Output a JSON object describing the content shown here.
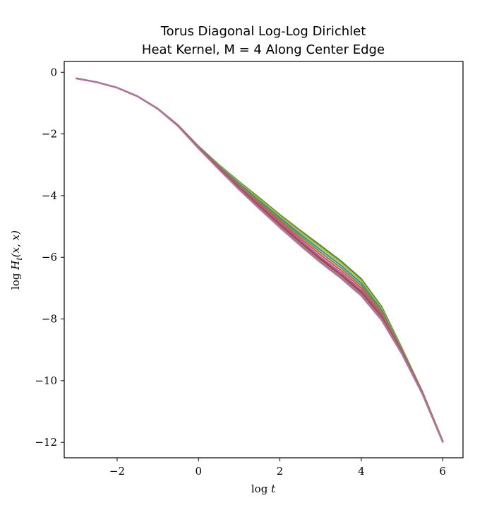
{
  "chart_data": {
    "type": "line",
    "title_lines": [
      "Torus Diagonal Log-Log Dirichlet",
      "Heat Kernel, M = 4 Along Center Edge"
    ],
    "xlabel_main": "log",
    "xlabel_var": "t",
    "ylabel_main": "log",
    "ylabel_var": "H",
    "ylabel_sub": "t",
    "ylabel_args": "(x, x)",
    "xlim": [
      -3.3,
      6.5
    ],
    "ylim": [
      -12.5,
      0.35
    ],
    "xticks": [
      -2,
      0,
      2,
      4,
      6
    ],
    "yticks": [
      0,
      -2,
      -4,
      -6,
      -8,
      -10,
      -12
    ],
    "xtick_labels": [
      "−2",
      "0",
      "2",
      "4",
      "6"
    ],
    "ytick_labels": [
      "0",
      "−2",
      "−4",
      "−6",
      "−8",
      "−10",
      "−12"
    ],
    "grid": false,
    "legend": "none",
    "x": [
      -3.0,
      -2.5,
      -2.0,
      -1.5,
      -1.0,
      -0.5,
      0.0,
      0.5,
      1.0,
      1.5,
      2.0,
      2.5,
      3.0,
      3.5,
      4.0,
      4.5,
      5.0,
      5.5,
      6.0
    ],
    "series": [
      {
        "color": "#4a8f3c",
        "values": [
          -0.2,
          -0.32,
          -0.5,
          -0.78,
          -1.18,
          -1.72,
          -2.4,
          -3.0,
          -3.55,
          -4.08,
          -4.62,
          -5.13,
          -5.62,
          -6.12,
          -6.7,
          -7.6,
          -8.95,
          -10.35,
          -11.95
        ]
      },
      {
        "color": "#c8b020",
        "values": [
          -0.2,
          -0.32,
          -0.5,
          -0.78,
          -1.18,
          -1.72,
          -2.41,
          -3.02,
          -3.58,
          -4.12,
          -4.66,
          -5.18,
          -5.68,
          -6.18,
          -6.76,
          -7.66,
          -8.98,
          -10.36,
          -11.95
        ]
      },
      {
        "color": "#1f9aa8",
        "values": [
          -0.2,
          -0.32,
          -0.5,
          -0.78,
          -1.18,
          -1.72,
          -2.42,
          -3.04,
          -3.62,
          -4.17,
          -4.72,
          -5.25,
          -5.76,
          -6.26,
          -6.84,
          -7.72,
          -9.0,
          -10.37,
          -11.96
        ]
      },
      {
        "color": "#8a8a3a",
        "values": [
          -0.2,
          -0.32,
          -0.5,
          -0.78,
          -1.18,
          -1.73,
          -2.43,
          -3.06,
          -3.66,
          -4.22,
          -4.78,
          -5.32,
          -5.84,
          -6.34,
          -6.92,
          -7.78,
          -9.02,
          -10.38,
          -11.96
        ]
      },
      {
        "color": "#d9534f",
        "values": [
          -0.2,
          -0.32,
          -0.5,
          -0.78,
          -1.18,
          -1.73,
          -2.44,
          -3.08,
          -3.7,
          -4.27,
          -4.84,
          -5.39,
          -5.92,
          -6.42,
          -7.0,
          -7.84,
          -9.05,
          -10.39,
          -11.97
        ]
      },
      {
        "color": "#9b59b6",
        "values": [
          -0.2,
          -0.32,
          -0.5,
          -0.78,
          -1.19,
          -1.74,
          -2.45,
          -3.1,
          -3.73,
          -4.32,
          -4.9,
          -5.46,
          -6.0,
          -6.5,
          -7.08,
          -7.9,
          -9.08,
          -10.4,
          -11.97
        ]
      },
      {
        "color": "#c0392b",
        "values": [
          -0.2,
          -0.32,
          -0.5,
          -0.78,
          -1.19,
          -1.74,
          -2.46,
          -3.12,
          -3.76,
          -4.36,
          -4.95,
          -5.52,
          -6.06,
          -6.57,
          -7.14,
          -7.95,
          -9.1,
          -10.41,
          -11.98
        ]
      },
      {
        "color": "#7f8c8d",
        "values": [
          -0.2,
          -0.32,
          -0.5,
          -0.78,
          -1.19,
          -1.75,
          -2.47,
          -3.14,
          -3.79,
          -4.4,
          -5.0,
          -5.57,
          -6.12,
          -6.63,
          -7.2,
          -8.0,
          -9.12,
          -10.42,
          -11.98
        ]
      },
      {
        "color": "#b5739d",
        "values": [
          -0.2,
          -0.32,
          -0.5,
          -0.78,
          -1.19,
          -1.75,
          -2.47,
          -3.15,
          -3.81,
          -4.43,
          -5.04,
          -5.62,
          -6.17,
          -6.68,
          -7.25,
          -8.04,
          -9.14,
          -10.43,
          -11.99
        ]
      }
    ]
  }
}
